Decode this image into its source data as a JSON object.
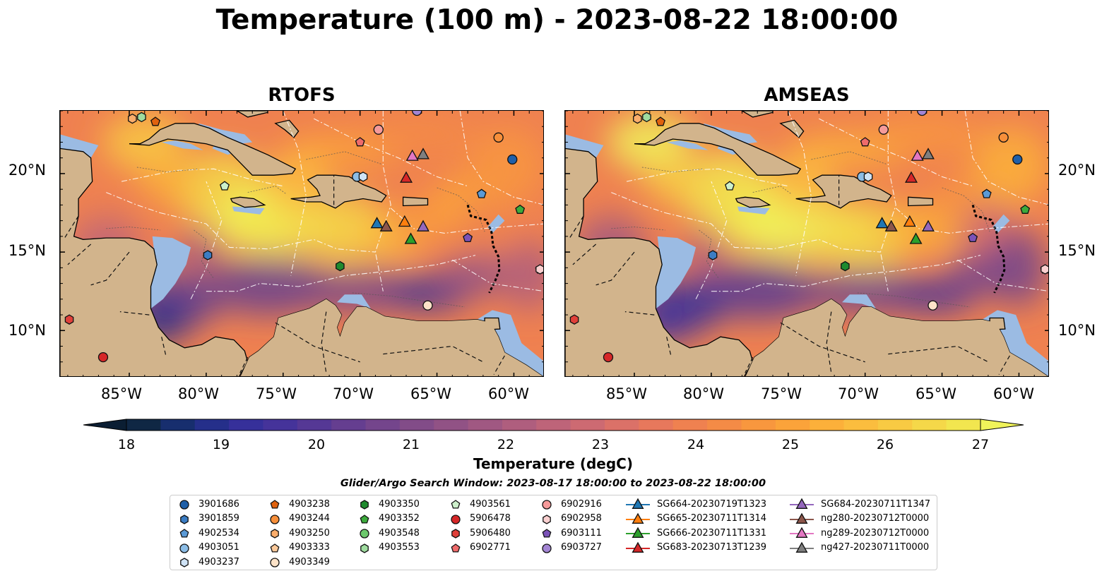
{
  "title": "Temperature (100 m) - 2023-08-22 18:00:00",
  "panels": [
    {
      "id": "rtofs",
      "title": "RTOFS"
    },
    {
      "id": "amseas",
      "title": "AMSEAS"
    }
  ],
  "map": {
    "lon_range": [
      -89.5,
      -58.0
    ],
    "lat_range": [
      7.0,
      24.0
    ],
    "lon_ticks": [
      "85°W",
      "80°W",
      "75°W",
      "70°W",
      "65°W",
      "60°W"
    ],
    "lon_tick_values": [
      -85,
      -80,
      -75,
      -70,
      -65,
      -60
    ],
    "lat_ticks": [
      "20°N",
      "15°N",
      "10°N"
    ],
    "lat_tick_values": [
      20,
      15,
      10
    ],
    "land_color": "#d2b48c",
    "shallow_water_color": "#9bbbe3"
  },
  "colorbar": {
    "label": "Temperature (degC)",
    "min": 18,
    "max": 27,
    "ticks": [
      "18",
      "19",
      "20",
      "21",
      "22",
      "23",
      "24",
      "25",
      "26",
      "27"
    ],
    "tick_values": [
      18,
      19,
      20,
      21,
      22,
      23,
      24,
      25,
      26,
      27
    ],
    "colors": [
      "#0b1e33",
      "#0f2744",
      "#172e6e",
      "#252f8a",
      "#36309a",
      "#45339a",
      "#553895",
      "#653e90",
      "#74458c",
      "#824c88",
      "#915285",
      "#a05882",
      "#af5e7e",
      "#be6479",
      "#cd6a72",
      "#db7168",
      "#e7785c",
      "#ef8150",
      "#f48b46",
      "#f8973e",
      "#fba33a",
      "#fcb03a",
      "#fbbd3e",
      "#f8ca43",
      "#f5d849",
      "#f2e64f",
      "#f0f35a"
    ],
    "extend": "both"
  },
  "legend": {
    "title": "Glider/Argo Search Window: 2023-08-17 18:00:00 to 2023-08-22 18:00:00",
    "columns": [
      [
        {
          "label": "3901686",
          "marker": "circle",
          "color": "#1f5fa8"
        },
        {
          "label": "3901859",
          "marker": "hexagon",
          "color": "#3b7dc4"
        },
        {
          "label": "4902534",
          "marker": "pentagon",
          "color": "#5b9ad6"
        },
        {
          "label": "4903051",
          "marker": "circle",
          "color": "#8cbde6"
        },
        {
          "label": "4903237",
          "marker": "hexagon",
          "color": "#cfe3f6"
        }
      ],
      [
        {
          "label": "4903238",
          "marker": "pentagon",
          "color": "#e0620e"
        },
        {
          "label": "4903244",
          "marker": "circle",
          "color": "#f78f3a"
        },
        {
          "label": "4903250",
          "marker": "hexagon",
          "color": "#fbad6b"
        },
        {
          "label": "4903333",
          "marker": "pentagon",
          "color": "#fcc99a"
        },
        {
          "label": "4903349",
          "marker": "circle",
          "color": "#fde3c8"
        }
      ],
      [
        {
          "label": "4903350",
          "marker": "hexagon",
          "color": "#1f8a2e"
        },
        {
          "label": "4903352",
          "marker": "pentagon",
          "color": "#3caa3c"
        },
        {
          "label": "4903548",
          "marker": "circle",
          "color": "#6cc86c"
        },
        {
          "label": "4903553",
          "marker": "hexagon",
          "color": "#9fdc9f"
        }
      ],
      [
        {
          "label": "4903561",
          "marker": "pentagon",
          "color": "#cdf0cb"
        },
        {
          "label": "5906478",
          "marker": "circle",
          "color": "#d62728"
        },
        {
          "label": "5906480",
          "marker": "hexagon",
          "color": "#e0403a"
        },
        {
          "label": "6902771",
          "marker": "pentagon",
          "color": "#ef6b6b"
        }
      ],
      [
        {
          "label": "6902916",
          "marker": "circle",
          "color": "#f59a9a"
        },
        {
          "label": "6902958",
          "marker": "hexagon",
          "color": "#fbd0d0"
        },
        {
          "label": "6903111",
          "marker": "pentagon",
          "color": "#7b52b8"
        },
        {
          "label": "6903727",
          "marker": "circle",
          "color": "#a385d4"
        }
      ],
      [
        {
          "label": "SG664-20230719T1323",
          "marker": "triangle",
          "color": "#1f77b4"
        },
        {
          "label": "SG665-20230711T1314",
          "marker": "triangle",
          "color": "#ff7f0e"
        },
        {
          "label": "SG666-20230711T1331",
          "marker": "triangle",
          "color": "#2ca02c"
        },
        {
          "label": "SG683-20230713T1239",
          "marker": "triangle",
          "color": "#d62728"
        }
      ],
      [
        {
          "label": "SG684-20230711T1347",
          "marker": "triangle",
          "color": "#9467bd"
        },
        {
          "label": "ng280-20230712T0000",
          "marker": "triangle",
          "color": "#8c564b"
        },
        {
          "label": "ng289-20230712T0000",
          "marker": "triangle",
          "color": "#e377c2"
        },
        {
          "label": "ng427-20230711T0000",
          "marker": "triangle",
          "color": "#7f7f7f"
        }
      ]
    ]
  },
  "platforms": [
    {
      "label": "3901686",
      "lon": -60.1,
      "lat": 20.9
    },
    {
      "label": "3901859",
      "lon": -79.9,
      "lat": 14.8
    },
    {
      "label": "4902534",
      "lon": -62.1,
      "lat": 18.7
    },
    {
      "label": "4903051",
      "lon": -70.2,
      "lat": 19.8
    },
    {
      "label": "4903237",
      "lon": -69.8,
      "lat": 19.8
    },
    {
      "label": "4903238",
      "lon": -83.3,
      "lat": 23.3
    },
    {
      "label": "4903244",
      "lon": -61.0,
      "lat": 22.3
    },
    {
      "label": "4903250",
      "lon": -84.8,
      "lat": 23.5
    },
    {
      "label": "4903333",
      "lon": -58.3,
      "lat": 13.9
    },
    {
      "label": "4903349",
      "lon": -65.6,
      "lat": 11.6
    },
    {
      "label": "4903350",
      "lon": -71.3,
      "lat": 14.1
    },
    {
      "label": "4903352",
      "lon": -59.6,
      "lat": 17.7
    },
    {
      "label": "4903553",
      "lon": -84.2,
      "lat": 23.6
    },
    {
      "label": "4903561",
      "lon": -78.8,
      "lat": 19.2
    },
    {
      "label": "5906478",
      "lon": -86.7,
      "lat": 8.3
    },
    {
      "label": "5906480",
      "lon": -88.9,
      "lat": 10.7
    },
    {
      "label": "6902771",
      "lon": -70.0,
      "lat": 22.0
    },
    {
      "label": "6902916",
      "lon": -68.8,
      "lat": 22.8
    },
    {
      "label": "6902958",
      "lon": -58.3,
      "lat": 13.9
    },
    {
      "label": "6903111",
      "lon": -63.0,
      "lat": 15.9
    },
    {
      "label": "6903727",
      "lon": -66.3,
      "lat": 24.0
    },
    {
      "label": "SG664-20230719T1323",
      "lon": -68.9,
      "lat": 16.8
    },
    {
      "label": "SG665-20230711T1314",
      "lon": -67.1,
      "lat": 16.9
    },
    {
      "label": "SG666-20230711T1331",
      "lon": -66.7,
      "lat": 15.8
    },
    {
      "label": "SG683-20230713T1239",
      "lon": -67.0,
      "lat": 19.7
    },
    {
      "label": "SG684-20230711T1347",
      "lon": -65.9,
      "lat": 16.6
    },
    {
      "label": "ng280-20230712T0000",
      "lon": -68.3,
      "lat": 16.6
    },
    {
      "label": "ng289-20230712T0000",
      "lon": -66.6,
      "lat": 21.1
    },
    {
      "label": "ng427-20230711T0000",
      "lon": -65.9,
      "lat": 21.2
    }
  ]
}
